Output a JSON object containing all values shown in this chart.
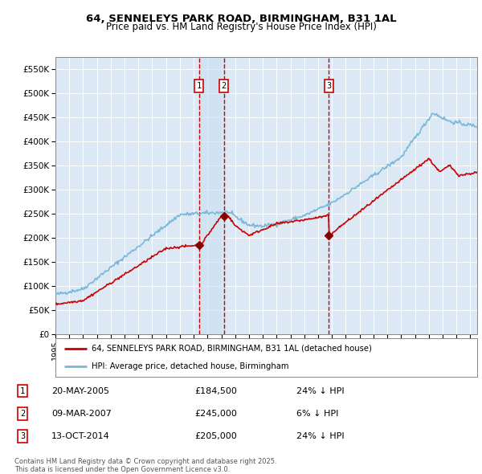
{
  "title_line1": "64, SENNELEYS PARK ROAD, BIRMINGHAM, B31 1AL",
  "title_line2": "Price paid vs. HM Land Registry's House Price Index (HPI)",
  "background_color": "#ffffff",
  "plot_bg_color": "#dce9f5",
  "grid_color": "#ffffff",
  "red_line_color": "#cc0000",
  "blue_line_color": "#7ab8d9",
  "sale_marker_color": "#8b0000",
  "vline_color": "#cc0000",
  "sale_dates_num": [
    2005.38,
    2007.18,
    2014.78
  ],
  "sale_prices": [
    184500,
    245000,
    205000
  ],
  "sale_labels": [
    "1",
    "2",
    "3"
  ],
  "legend_entries": [
    "64, SENNELEYS PARK ROAD, BIRMINGHAM, B31 1AL (detached house)",
    "HPI: Average price, detached house, Birmingham"
  ],
  "table_data": [
    [
      "1",
      "20-MAY-2005",
      "£184,500",
      "24% ↓ HPI"
    ],
    [
      "2",
      "09-MAR-2007",
      "£245,000",
      "6% ↓ HPI"
    ],
    [
      "3",
      "13-OCT-2014",
      "£205,000",
      "24% ↓ HPI"
    ]
  ],
  "footnote": "Contains HM Land Registry data © Crown copyright and database right 2025.\nThis data is licensed under the Open Government Licence v3.0.",
  "ylim": [
    0,
    575000
  ],
  "yticks": [
    0,
    50000,
    100000,
    150000,
    200000,
    250000,
    300000,
    350000,
    400000,
    450000,
    500000,
    550000
  ],
  "ytick_labels": [
    "£0",
    "£50K",
    "£100K",
    "£150K",
    "£200K",
    "£250K",
    "£300K",
    "£350K",
    "£400K",
    "£450K",
    "£500K",
    "£550K"
  ]
}
